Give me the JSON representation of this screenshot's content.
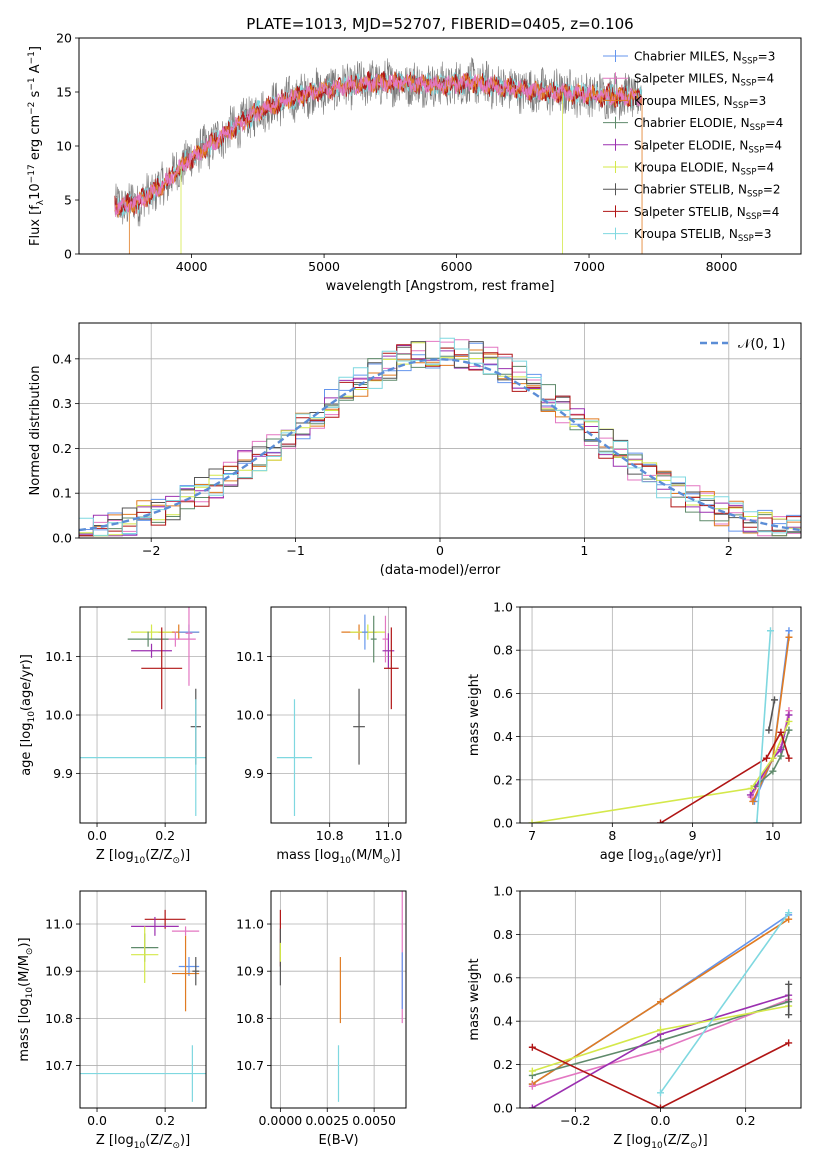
{
  "colors": {
    "chabrier_miles": "#6495ed",
    "salpeter_miles": "#e377c2",
    "kroupa_miles": "#e07b22",
    "chabrier_elodie": "#5f8a6b",
    "salpeter_elodie": "#9b30b0",
    "kroupa_elodie": "#d4e84a",
    "chabrier_stelib": "#555555",
    "salpeter_stelib": "#b01515",
    "kroupa_stelib": "#7fd8e0",
    "gaussian": "#5b8dd6",
    "spectrum_data": "#7a7a7a"
  },
  "chart_data": [
    {
      "id": "spectrum",
      "type": "line",
      "title": "PLATE=1013, MJD=52707, FIBERID=0405, z=0.106",
      "xlabel": "wavelength [Angstrom, rest frame]",
      "ylabel": "Flux [f",
      "ylabel_sub": "λ",
      "ylabel_rest": "10",
      "ylabel_exp": "−17",
      "ylabel_unit": " erg cm",
      "ylabel_exp2": "−2",
      "ylabel_s": " s",
      "ylabel_exp3": "−1",
      "ylabel_A": " A",
      "ylabel_exp4": "−1",
      "ylabel_end": "]",
      "xlim": [
        3150,
        8600
      ],
      "ylim": [
        0,
        20
      ],
      "xticks": [
        "4000",
        "5000",
        "6000",
        "7000",
        "8000"
      ],
      "xtick_values": [
        4000,
        5000,
        6000,
        7000,
        8000
      ],
      "yticks": [
        "0",
        "5",
        "10",
        "15",
        "20"
      ],
      "ytick_values": [
        0,
        5,
        10,
        15,
        20
      ],
      "continuum": [
        [
          3420,
          4.3
        ],
        [
          3600,
          4.8
        ],
        [
          3800,
          6.5
        ],
        [
          3950,
          8.5
        ],
        [
          4100,
          9.8
        ],
        [
          4300,
          11.5
        ],
        [
          4500,
          13.2
        ],
        [
          4700,
          14.2
        ],
        [
          4900,
          14.9
        ],
        [
          5100,
          15.4
        ],
        [
          5300,
          15.8
        ],
        [
          5500,
          15.9
        ],
        [
          5700,
          15.8
        ],
        [
          5900,
          15.6
        ],
        [
          6100,
          15.9
        ],
        [
          6300,
          15.5
        ],
        [
          6500,
          15.2
        ],
        [
          6700,
          15.0
        ],
        [
          6900,
          14.9
        ],
        [
          7100,
          14.7
        ],
        [
          7300,
          14.6
        ],
        [
          7400,
          14.5
        ]
      ],
      "legend_position": "right",
      "legend": [
        {
          "label": "Chabrier MILES, N",
          "sub": "SSP",
          "value": "=3",
          "color_key": "chabrier_miles"
        },
        {
          "label": "Salpeter MILES, N",
          "sub": "SSP",
          "value": "=4",
          "color_key": "salpeter_miles"
        },
        {
          "label": "Kroupa MILES, N",
          "sub": "SSP",
          "value": "=3",
          "color_key": "kroupa_miles"
        },
        {
          "label": "Chabrier ELODIE, N",
          "sub": "SSP",
          "value": "=4",
          "color_key": "chabrier_elodie"
        },
        {
          "label": "Salpeter ELODIE, N",
          "sub": "SSP",
          "value": "=4",
          "color_key": "salpeter_elodie"
        },
        {
          "label": "Kroupa ELODIE, N",
          "sub": "SSP",
          "value": "=4",
          "color_key": "kroupa_elodie"
        },
        {
          "label": "Chabrier STELIB, N",
          "sub": "SSP",
          "value": "=2",
          "color_key": "chabrier_stelib"
        },
        {
          "label": "Salpeter STELIB, N",
          "sub": "SSP",
          "value": "=4",
          "color_key": "salpeter_stelib"
        },
        {
          "label": "Kroupa STELIB, N",
          "sub": "SSP",
          "value": "=3",
          "color_key": "kroupa_stelib"
        }
      ]
    },
    {
      "id": "residuals",
      "type": "histogram",
      "xlabel": "(data-model)/error",
      "ylabel": "Normed distribution",
      "xlim": [
        -2.5,
        2.5
      ],
      "ylim": [
        0,
        0.48
      ],
      "xticks": [
        "−2",
        "−1",
        "0",
        "1",
        "2"
      ],
      "xtick_values": [
        -2,
        -1,
        0,
        1,
        2
      ],
      "yticks": [
        "0.0",
        "0.1",
        "0.2",
        "0.3",
        "0.4"
      ],
      "ytick_values": [
        0,
        0.1,
        0.2,
        0.3,
        0.4
      ],
      "grid": true,
      "bin_width": 0.1,
      "legend_position": "top-right",
      "legend_label": "𝒩(0, 1)"
    },
    {
      "id": "z-age",
      "type": "errorbar",
      "xlabel": "Z [log",
      "xlabel_sub": "10",
      "xlabel_rest": "(Z/Z",
      "xlabel_sub2": "⊙",
      "xlabel_end": ")]",
      "ylabel": "age  [log",
      "ylabel_sub": "10",
      "ylabel_rest": "(age/yr)]",
      "xlim": [
        -0.05,
        0.32
      ],
      "ylim": [
        9.815,
        10.185
      ],
      "xticks": [
        "0.0",
        "0.2"
      ],
      "xtick_values": [
        0.0,
        0.2
      ],
      "yticks": [
        "9.9",
        "10.0",
        "10.1"
      ],
      "ytick_values": [
        9.9,
        10.0,
        10.1
      ],
      "grid": true,
      "points": [
        {
          "x": 0.24,
          "y": 10.142,
          "xerr": 0.06,
          "yerr": 0.013,
          "color_key": "kroupa_miles"
        },
        {
          "x": 0.16,
          "y": 10.142,
          "xerr": 0.06,
          "yerr": 0.013,
          "color_key": "kroupa_elodie"
        },
        {
          "x": 0.23,
          "y": 10.13,
          "xerr": 0.06,
          "yerr": 0.013,
          "color_key": "salpeter_miles"
        },
        {
          "x": 0.15,
          "y": 10.13,
          "xerr": 0.06,
          "yerr": 0.013,
          "color_key": "chabrier_elodie"
        },
        {
          "x": 0.27,
          "y": 10.142,
          "xerr": 0.03,
          "yerr": 0.013,
          "color_key": "chabrier_miles"
        },
        {
          "x": 0.16,
          "y": 10.11,
          "xerr": 0.06,
          "yerr": 0.012,
          "color_key": "salpeter_elodie"
        },
        {
          "x": 0.19,
          "y": 10.08,
          "xerr": 0.06,
          "yerr": 0.07,
          "color_key": "salpeter_stelib"
        },
        {
          "x": 0.27,
          "y": 10.14,
          "xerr": 0.01,
          "yerr": 0.09,
          "color_key": "salpeter_miles"
        },
        {
          "x": 0.29,
          "y": 9.98,
          "xerr": 0.015,
          "yerr": 0.065,
          "color_key": "chabrier_stelib"
        },
        {
          "x": 0.29,
          "y": 9.927,
          "xerr": 0.34,
          "yerr": 0.1,
          "color_key": "kroupa_stelib"
        }
      ]
    },
    {
      "id": "mass-age",
      "type": "errorbar",
      "xlabel": "mass [log",
      "xlabel_sub": "10",
      "xlabel_rest": "(M/M",
      "xlabel_sub2": "⊙",
      "xlabel_end": ")]",
      "ylabel": "",
      "xlim": [
        10.6,
        11.06
      ],
      "ylim": [
        9.815,
        10.185
      ],
      "xticks": [
        "10.8",
        "11.0"
      ],
      "xtick_values": [
        10.8,
        11.0
      ],
      "yticks": [
        "9.9",
        "10.0",
        "10.1"
      ],
      "ytick_values": [
        9.9,
        10.0,
        10.1
      ],
      "grid": true,
      "points": [
        {
          "x": 10.9,
          "y": 10.142,
          "xerr": 0.06,
          "yerr": 0.013,
          "color_key": "kroupa_miles"
        },
        {
          "x": 10.93,
          "y": 10.142,
          "xerr": 0.06,
          "yerr": 0.013,
          "color_key": "kroupa_elodie"
        },
        {
          "x": 10.99,
          "y": 10.13,
          "xerr": 0.01,
          "yerr": 0.04,
          "color_key": "salpeter_miles"
        },
        {
          "x": 10.95,
          "y": 10.13,
          "xerr": 0.01,
          "yerr": 0.04,
          "color_key": "chabrier_elodie"
        },
        {
          "x": 10.92,
          "y": 10.142,
          "xerr": 0.01,
          "yerr": 0.03,
          "color_key": "chabrier_miles"
        },
        {
          "x": 11.0,
          "y": 10.11,
          "xerr": 0.02,
          "yerr": 0.03,
          "color_key": "salpeter_elodie"
        },
        {
          "x": 11.01,
          "y": 10.08,
          "xerr": 0.025,
          "yerr": 0.07,
          "color_key": "salpeter_stelib"
        },
        {
          "x": 10.9,
          "y": 9.98,
          "xerr": 0.02,
          "yerr": 0.065,
          "color_key": "chabrier_stelib"
        },
        {
          "x": 10.68,
          "y": 9.927,
          "xerr": 0.06,
          "yerr": 0.1,
          "color_key": "kroupa_stelib"
        }
      ]
    },
    {
      "id": "age-massweight",
      "type": "line",
      "xlabel": "age  [log",
      "xlabel_sub": "10",
      "xlabel_rest": "(age/yr)]",
      "ylabel": "mass weight",
      "xlim": [
        6.85,
        10.35
      ],
      "ylim": [
        0,
        1.0
      ],
      "xticks": [
        "7",
        "8",
        "9",
        "10"
      ],
      "xtick_values": [
        7,
        8,
        9,
        10
      ],
      "yticks": [
        "0.0",
        "0.2",
        "0.4",
        "0.6",
        "0.8",
        "1.0"
      ],
      "ytick_values": [
        0,
        0.2,
        0.4,
        0.6,
        0.8,
        1.0
      ],
      "grid": true,
      "series": [
        {
          "color_key": "chabrier_miles",
          "points": [
            [
              9.77,
              0.1
            ],
            [
              10.0,
              0.3
            ],
            [
              10.2,
              0.89
            ]
          ]
        },
        {
          "color_key": "salpeter_miles",
          "points": [
            [
              9.73,
              0.12
            ],
            [
              10.0,
              0.3
            ],
            [
              10.1,
              0.35
            ],
            [
              10.2,
              0.52
            ]
          ]
        },
        {
          "color_key": "kroupa_miles",
          "points": [
            [
              9.75,
              0.1
            ],
            [
              10.0,
              0.3
            ],
            [
              10.2,
              0.86
            ]
          ]
        },
        {
          "color_key": "chabrier_elodie",
          "points": [
            [
              9.78,
              0.17
            ],
            [
              10.0,
              0.24
            ],
            [
              10.1,
              0.31
            ],
            [
              10.2,
              0.43
            ]
          ]
        },
        {
          "color_key": "salpeter_elodie",
          "points": [
            [
              9.72,
              0.13
            ],
            [
              10.0,
              0.3
            ],
            [
              10.1,
              0.34
            ],
            [
              10.2,
              0.5
            ]
          ]
        },
        {
          "color_key": "kroupa_elodie",
          "points": [
            [
              7.0,
              0.0
            ],
            [
              9.73,
              0.16
            ],
            [
              10.0,
              0.3
            ],
            [
              10.2,
              0.47
            ]
          ]
        },
        {
          "color_key": "chabrier_stelib",
          "points": [
            [
              9.95,
              0.43
            ],
            [
              10.02,
              0.57
            ]
          ]
        },
        {
          "color_key": "salpeter_stelib",
          "points": [
            [
              8.6,
              0.0
            ],
            [
              9.92,
              0.3
            ],
            [
              10.1,
              0.42
            ],
            [
              10.2,
              0.3
            ]
          ]
        },
        {
          "color_key": "kroupa_stelib",
          "points": [
            [
              9.8,
              0.0
            ],
            [
              9.97,
              0.89
            ]
          ]
        }
      ]
    },
    {
      "id": "z-mass",
      "type": "errorbar",
      "xlabel": "Z [log",
      "xlabel_sub": "10",
      "xlabel_rest": "(Z/Z",
      "xlabel_sub2": "⊙",
      "xlabel_end": ")]",
      "ylabel": "mass [log",
      "ylabel_sub": "10",
      "ylabel_rest": "(M/M",
      "ylabel_sub2": "⊙",
      "ylabel_end": ")]",
      "xlim": [
        -0.05,
        0.32
      ],
      "ylim": [
        10.61,
        11.07
      ],
      "xticks": [
        "0.0",
        "0.2"
      ],
      "xtick_values": [
        0.0,
        0.2
      ],
      "yticks": [
        "10.7",
        "10.8",
        "10.9",
        "11.0"
      ],
      "ytick_values": [
        10.7,
        10.8,
        10.9,
        11.0
      ],
      "grid": true,
      "points": [
        {
          "x": 0.2,
          "y": 11.01,
          "xerr": 0.06,
          "yerr": 0.02,
          "color_key": "salpeter_stelib"
        },
        {
          "x": 0.17,
          "y": 10.995,
          "xerr": 0.07,
          "yerr": 0.02,
          "color_key": "salpeter_elodie"
        },
        {
          "x": 0.26,
          "y": 10.985,
          "xerr": 0.04,
          "yerr": 0.01,
          "color_key": "salpeter_miles"
        },
        {
          "x": 0.14,
          "y": 10.95,
          "xerr": 0.04,
          "yerr": 0.03,
          "color_key": "chabrier_elodie"
        },
        {
          "x": 0.14,
          "y": 10.935,
          "xerr": 0.04,
          "yerr": 0.06,
          "color_key": "kroupa_elodie"
        },
        {
          "x": 0.27,
          "y": 10.91,
          "xerr": 0.03,
          "yerr": 0.02,
          "color_key": "chabrier_miles"
        },
        {
          "x": 0.26,
          "y": 10.895,
          "xerr": 0.04,
          "yerr": 0.08,
          "color_key": "kroupa_miles"
        },
        {
          "x": 0.29,
          "y": 10.9,
          "xerr": 0.01,
          "yerr": 0.03,
          "color_key": "chabrier_stelib"
        },
        {
          "x": 0.28,
          "y": 10.683,
          "xerr": 0.34,
          "yerr": 0.06,
          "color_key": "kroupa_stelib"
        }
      ]
    },
    {
      "id": "ebv-mass",
      "type": "errorbar",
      "xlabel": "E(B-V)",
      "ylabel": "",
      "xlim": [
        -0.0005,
        0.0067
      ],
      "ylim": [
        10.61,
        11.07
      ],
      "xticks": [
        "0.0000",
        "0.0025",
        "0.0050"
      ],
      "xtick_values": [
        0.0,
        0.0025,
        0.005
      ],
      "yticks": [
        "10.7",
        "10.8",
        "10.9",
        "11.0"
      ],
      "ytick_values": [
        10.7,
        10.8,
        10.9,
        11.0
      ],
      "grid": true,
      "points": [
        {
          "x": 0.0,
          "y": 10.97,
          "xerr": 0.0,
          "yerr": 0.06,
          "color_key": "salpeter_stelib"
        },
        {
          "x": 0.0,
          "y": 10.93,
          "xerr": 0.0,
          "yerr": 0.06,
          "color_key": "chabrier_stelib"
        },
        {
          "x": 0.0,
          "y": 10.94,
          "xerr": 0.0,
          "yerr": 0.02,
          "color_key": "kroupa_elodie"
        },
        {
          "x": 0.0032,
          "y": 10.86,
          "xerr": 0.0,
          "yerr": 0.07,
          "color_key": "kroupa_miles"
        },
        {
          "x": 0.0031,
          "y": 10.683,
          "xerr": 0.0,
          "yerr": 0.06,
          "color_key": "kroupa_stelib"
        },
        {
          "x": 0.0065,
          "y": 10.95,
          "xerr": 0.0,
          "yerr": 0.16,
          "color_key": "salpeter_miles"
        },
        {
          "x": 0.0065,
          "y": 10.88,
          "xerr": 0.0,
          "yerr": 0.06,
          "color_key": "chabrier_miles"
        }
      ]
    },
    {
      "id": "z-massweight",
      "type": "line",
      "xlabel": "Z [log",
      "xlabel_sub": "10",
      "xlabel_rest": "(Z/Z",
      "xlabel_sub2": "⊙",
      "xlabel_end": ")]",
      "ylabel": "mass weight",
      "xlim": [
        -0.33,
        0.33
      ],
      "ylim": [
        0,
        1.0
      ],
      "xticks": [
        "−0.2",
        "0.0",
        "0.2"
      ],
      "xtick_values": [
        -0.2,
        0.0,
        0.2
      ],
      "yticks": [
        "0.0",
        "0.2",
        "0.4",
        "0.6",
        "0.8",
        "1.0"
      ],
      "ytick_values": [
        0,
        0.2,
        0.4,
        0.6,
        0.8,
        1.0
      ],
      "grid": true,
      "series": [
        {
          "color_key": "chabrier_miles",
          "points": [
            [
              -0.301,
              0.11
            ],
            [
              0.0,
              0.49
            ],
            [
              0.301,
              0.89
            ]
          ]
        },
        {
          "color_key": "kroupa_miles",
          "points": [
            [
              -0.301,
              0.11
            ],
            [
              0.0,
              0.49
            ],
            [
              0.301,
              0.87
            ]
          ]
        },
        {
          "color_key": "salpeter_miles",
          "points": [
            [
              -0.301,
              0.1
            ],
            [
              0.0,
              0.27
            ],
            [
              0.301,
              0.5
            ]
          ]
        },
        {
          "color_key": "chabrier_elodie",
          "points": [
            [
              -0.301,
              0.15
            ],
            [
              0.0,
              0.31
            ],
            [
              0.301,
              0.49
            ]
          ]
        },
        {
          "color_key": "salpeter_elodie",
          "points": [
            [
              -0.301,
              0.0
            ],
            [
              0.0,
              0.34
            ],
            [
              0.301,
              0.52
            ]
          ]
        },
        {
          "color_key": "kroupa_elodie",
          "points": [
            [
              -0.301,
              0.17
            ],
            [
              0.0,
              0.36
            ],
            [
              0.301,
              0.47
            ]
          ]
        },
        {
          "color_key": "salpeter_stelib",
          "points": [
            [
              -0.301,
              0.28
            ],
            [
              0.0,
              0.0
            ],
            [
              0.301,
              0.3
            ]
          ]
        },
        {
          "color_key": "kroupa_stelib",
          "points": [
            [
              0.0,
              0.07
            ],
            [
              0.301,
              0.9
            ]
          ]
        },
        {
          "color_key": "chabrier_stelib",
          "points": [
            [
              0.301,
              0.57
            ],
            [
              0.301,
              0.43
            ]
          ]
        }
      ]
    }
  ]
}
